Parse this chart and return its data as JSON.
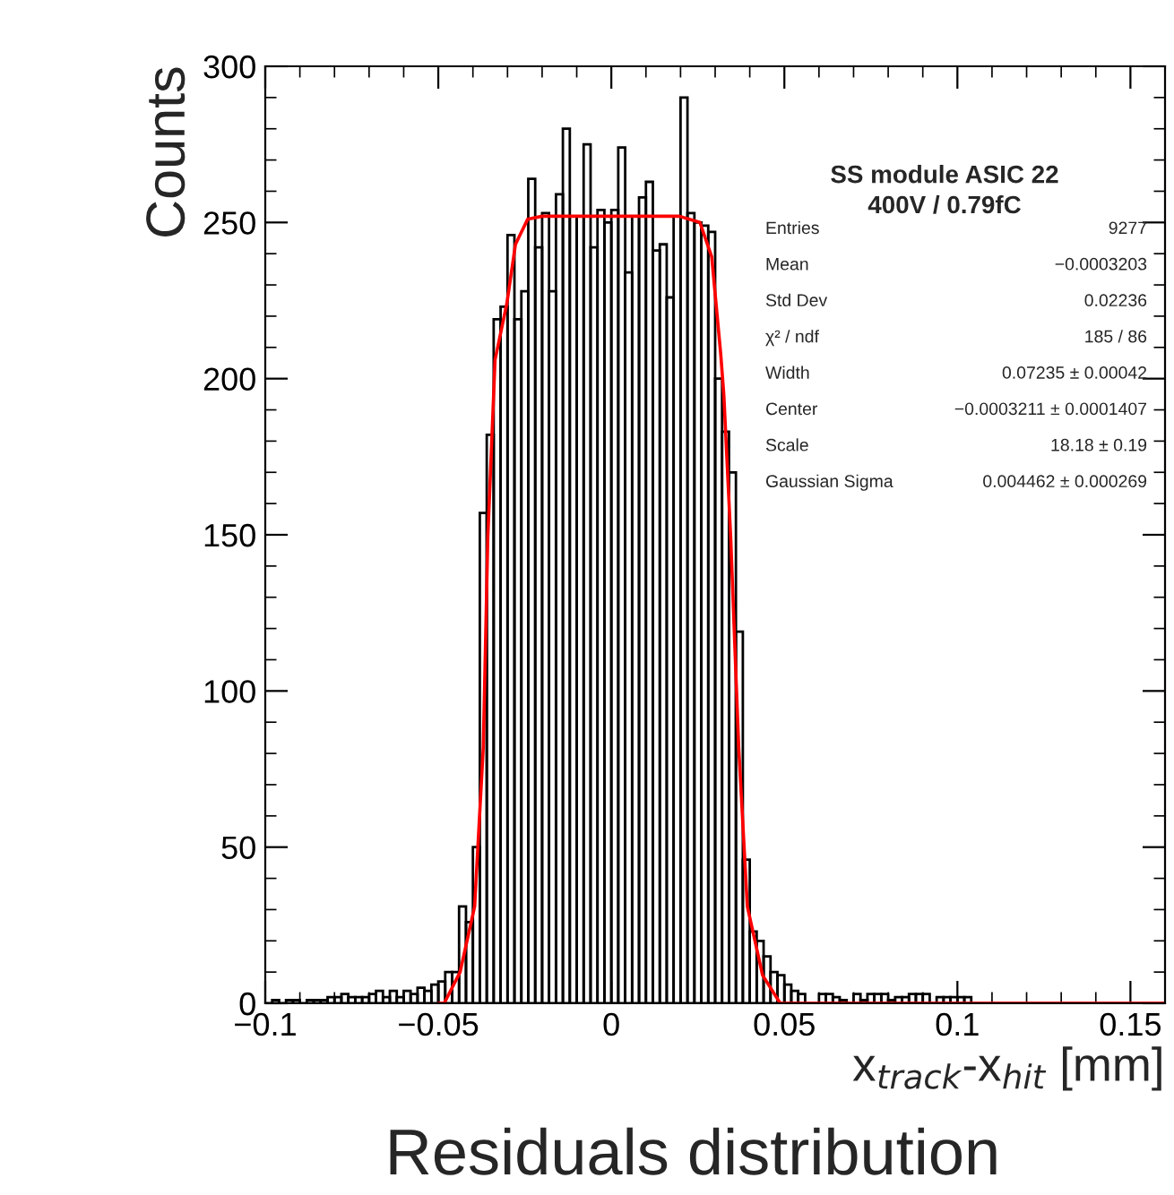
{
  "chart_data": {
    "type": "histogram",
    "title": "Residuals distribution",
    "subtitle": "SS module ASIC 22\n400V / 0.79fC",
    "xlabel": "x$_{track}$-x$_{hit}$ [mm]",
    "ylabel": "Counts",
    "bins": [
      -0.1,
      -0.098,
      -0.096,
      -0.094,
      -0.092,
      -0.09,
      -0.088,
      -0.086,
      -0.084,
      -0.082,
      -0.08,
      -0.078,
      -0.076,
      -0.074,
      -0.072,
      -0.07,
      -0.068,
      -0.066,
      -0.064,
      -0.062,
      -0.06,
      -0.058,
      -0.056,
      -0.054,
      -0.052,
      -0.05,
      -0.048,
      -0.046,
      -0.044,
      -0.042,
      -0.04,
      -0.038,
      -0.036,
      -0.034,
      -0.032,
      -0.03,
      -0.028,
      -0.026,
      -0.024,
      -0.022,
      -0.02,
      -0.018,
      -0.016,
      -0.014,
      -0.012,
      -0.01,
      -0.008,
      -0.006,
      -0.004,
      -0.002,
      0,
      0.002,
      0.004,
      0.006,
      0.008,
      0.01,
      0.012,
      0.014,
      0.016,
      0.018,
      0.02,
      0.022,
      0.024,
      0.026,
      0.028,
      0.03,
      0.032,
      0.034,
      0.036,
      0.038,
      0.04,
      0.042,
      0.044,
      0.046,
      0.048,
      0.05,
      0.052,
      0.054,
      0.056,
      0.058,
      0.06,
      0.062,
      0.064,
      0.066,
      0.068,
      0.07,
      0.072,
      0.074,
      0.076,
      0.078,
      0.08,
      0.082,
      0.084,
      0.086,
      0.088,
      0.09,
      0.092,
      0.094,
      0.096,
      0.098,
      0.1,
      0.102,
      0.104,
      0.106,
      0.108,
      0.11,
      0.112,
      0.114,
      0.116,
      0.118,
      0.12,
      0.122,
      0.124,
      0.126,
      0.128,
      0.13,
      0.132,
      0.134,
      0.136,
      0.138,
      0.14,
      0.142,
      0.144,
      0.146,
      0.148,
      0.15,
      0.152,
      0.154,
      0.156,
      0.158,
      0.16
    ],
    "values": [
      0,
      1,
      0,
      1,
      1,
      0,
      1,
      1,
      1,
      2,
      2,
      3,
      2,
      2,
      2,
      3,
      4,
      2,
      4,
      2,
      4,
      3,
      5,
      4,
      6,
      7,
      10,
      10,
      31,
      26,
      50,
      157,
      182,
      219,
      223,
      246,
      219,
      228,
      264,
      242,
      253,
      228,
      259,
      280,
      252,
      252,
      275,
      242,
      254,
      250,
      254,
      274,
      234,
      252,
      258,
      263,
      241,
      243,
      226,
      252,
      290,
      253,
      250,
      249,
      247,
      200,
      183,
      170,
      119,
      46,
      23,
      20,
      15,
      10,
      9,
      6,
      4,
      3,
      0,
      0,
      3,
      3,
      2,
      1,
      0,
      3,
      1,
      3,
      3,
      3,
      1,
      2,
      2,
      3,
      3,
      3,
      0,
      2,
      2,
      2,
      2,
      2,
      0,
      0,
      0,
      0,
      0,
      0,
      0,
      0,
      0,
      0,
      0,
      0,
      0,
      0,
      0,
      0,
      0,
      0,
      0,
      0,
      0,
      0,
      0,
      0,
      0,
      0,
      0,
      0
    ],
    "color": "#000000",
    "series": [
      {
        "type": "line",
        "color": "#ff0000",
        "x": [
          -0.05,
          -0.0483,
          -0.0437,
          -0.0395,
          -0.037,
          -0.0357,
          -0.0336,
          -0.0302,
          -0.0277,
          -0.0242,
          -0.02,
          0,
          0.0196,
          0.0256,
          0.029,
          0.0316,
          0.0325,
          0.0345,
          0.0368,
          0.0393,
          0.0437,
          0.0488,
          0.16
        ],
        "values": [
          0,
          0,
          10,
          31,
          82,
          149,
          206,
          224,
          243,
          251,
          252,
          252,
          252,
          250,
          239,
          208,
          195,
          149,
          82,
          31,
          9,
          0,
          0
        ]
      }
    ],
    "annotations": [
      "Entries",
      "9277",
      "Mean",
      "−0.0003203",
      "Std Dev",
      "0.02236",
      "χ² / ndf",
      "185 / 86",
      "Width",
      "0.07235 ± 0.00042",
      "Center",
      "−0.0003211 ± 0.0001407",
      "Scale",
      "18.18 ± 0.19",
      "Gaussian Sigma",
      "0.004462 ± 0.000269"
    ],
    "xlim": [
      -0.1,
      0.16
    ],
    "ylim": [
      0,
      300
    ],
    "xticks": [
      {
        "value": -0.1,
        "label": "−0.1"
      },
      {
        "value": -0.05,
        "label": "−0.05"
      },
      0,
      0.05,
      0.1,
      0.15
    ],
    "yticks": [
      0,
      50,
      100,
      150,
      200,
      250,
      300
    ],
    "grid": false,
    "legend": false
  }
}
